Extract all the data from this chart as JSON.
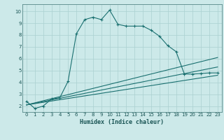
{
  "xlabel": "Humidex (Indice chaleur)",
  "bg_color": "#cce9e9",
  "grid_color": "#aad0d0",
  "line_color": "#1a7070",
  "spine_color": "#558888",
  "xlim": [
    -0.5,
    23.5
  ],
  "ylim": [
    1.5,
    10.6
  ],
  "xticks": [
    0,
    1,
    2,
    3,
    4,
    5,
    6,
    7,
    8,
    9,
    10,
    11,
    12,
    13,
    14,
    15,
    16,
    17,
    18,
    19,
    20,
    21,
    22,
    23
  ],
  "yticks": [
    2,
    3,
    4,
    5,
    6,
    7,
    8,
    9,
    10
  ],
  "curve1_x": [
    0,
    1,
    2,
    3,
    4,
    5,
    6,
    7,
    8,
    9,
    10,
    11,
    12,
    13,
    14,
    15,
    16,
    17,
    18,
    19,
    20,
    21,
    22,
    23
  ],
  "curve1_y": [
    2.4,
    1.8,
    2.0,
    2.6,
    2.7,
    4.1,
    8.1,
    9.3,
    9.5,
    9.3,
    10.1,
    8.9,
    8.75,
    8.75,
    8.75,
    8.4,
    7.9,
    7.1,
    6.6,
    4.7,
    4.7,
    4.75,
    4.8,
    4.8
  ],
  "curve2_x": [
    0,
    23
  ],
  "curve2_y": [
    2.1,
    6.1
  ],
  "curve3_x": [
    0,
    23
  ],
  "curve3_y": [
    2.1,
    5.3
  ],
  "curve4_x": [
    0,
    23
  ],
  "curve4_y": [
    2.1,
    4.6
  ]
}
